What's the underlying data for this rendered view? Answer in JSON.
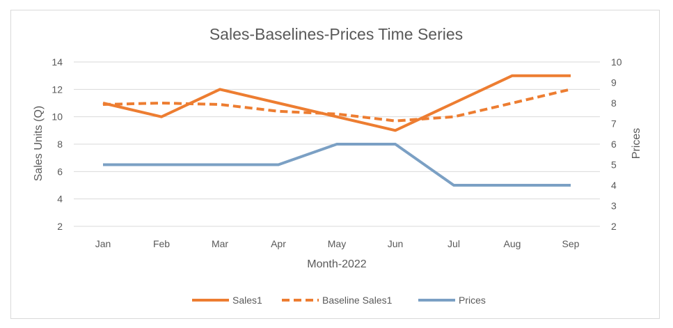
{
  "chart_data": {
    "type": "line",
    "title": "Sales-Baselines-Prices Time Series",
    "xlabel": "Month-2022",
    "ylabel": "Sales Units (Q)",
    "y2label": "Prices",
    "categories": [
      "Jan",
      "Feb",
      "Mar",
      "Apr",
      "May",
      "Jun",
      "Jul",
      "Aug",
      "Sep"
    ],
    "ylim": [
      2,
      14
    ],
    "yticks": [
      "2",
      "4",
      "6",
      "8",
      "10",
      "12",
      "14"
    ],
    "y2lim": [
      2,
      10
    ],
    "y2ticks": [
      "2",
      "3",
      "4",
      "5",
      "6",
      "7",
      "8",
      "9",
      "10"
    ],
    "grid": true,
    "legend_position": "bottom",
    "series": [
      {
        "name": "Sales1",
        "axis": "left",
        "style": "solid",
        "color": "#ED7D31",
        "values": [
          11,
          10,
          12,
          11,
          10,
          9,
          11,
          13,
          13
        ]
      },
      {
        "name": "Baseline Sales1",
        "axis": "left",
        "style": "dashed",
        "color": "#ED7D31",
        "values": [
          10.9,
          11.0,
          10.9,
          10.4,
          10.2,
          9.7,
          10.0,
          11.0,
          12.0
        ]
      },
      {
        "name": "Prices",
        "axis": "right",
        "style": "solid",
        "color": "#7BA0C4",
        "values": [
          5,
          5,
          5,
          5,
          6,
          6,
          4,
          4,
          4
        ]
      }
    ]
  }
}
